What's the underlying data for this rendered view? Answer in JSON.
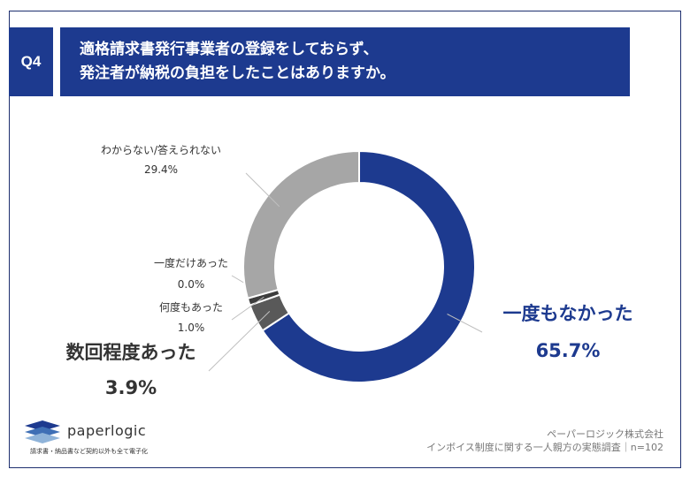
{
  "question": {
    "badge": "Q4",
    "line1": "適格請求書発行事業者の登録をしておらず、",
    "line2": "発注者が納税の負担をしたことはありますか。"
  },
  "chart_data": {
    "type": "pie",
    "variant": "donut",
    "title": "",
    "slices": [
      {
        "label": "一度もなかった",
        "value": 65.7,
        "value_label": "65.7%",
        "color": "#1d3a8f"
      },
      {
        "label": "数回程度あった",
        "value": 3.9,
        "value_label": "3.9%",
        "color": "#595959"
      },
      {
        "label": "何度もあった",
        "value": 1.0,
        "value_label": "1.0%",
        "color": "#3d3d3d"
      },
      {
        "label": "一度だけあった",
        "value": 0.0,
        "value_label": "0.0%",
        "color": "#7a7a7a"
      },
      {
        "label": "わからない/答えられない",
        "value": 29.4,
        "value_label": "29.4%",
        "color": "#a6a6a6"
      }
    ]
  },
  "footer": {
    "company": "ペーパーロジック株式会社",
    "survey": "インボイス制度に関する一人親方の実態調査｜n=102"
  },
  "logo": {
    "wordmark": "paperlogic",
    "tagline": "請求書・納品書など契約以外も全て電子化",
    "colors": [
      "#1d3a8f",
      "#3f6fb5",
      "#8fb3d9"
    ]
  }
}
